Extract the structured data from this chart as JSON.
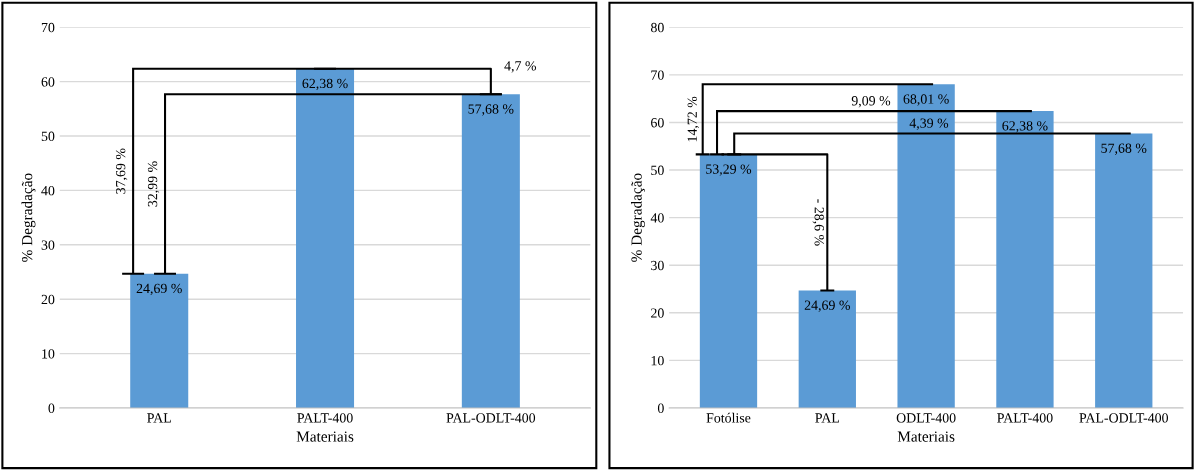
{
  "chart_data": [
    {
      "type": "bar",
      "xlabel": "Materiais",
      "ylabel": "% Degradação",
      "categories": [
        "PAL",
        "PALT-400",
        "PAL-ODLT-400"
      ],
      "values": [
        24.69,
        62.38,
        57.68
      ],
      "value_labels": [
        "24,69 %",
        "62,38 %",
        "57,68 %"
      ],
      "color": "#5b9bd5",
      "ylim": [
        0,
        70
      ],
      "yticks": [
        0,
        10,
        20,
        30,
        40,
        50,
        60,
        70
      ],
      "grid": "y",
      "annotations": [
        "37,69 %",
        "4,7 %",
        "32,99 %"
      ]
    },
    {
      "type": "bar",
      "xlabel": "Materiais",
      "ylabel": "% Degradação",
      "categories": [
        "Fotólise",
        "PAL",
        "ODLT-400",
        "PALT-400",
        "PAL-ODLT-400"
      ],
      "values": [
        53.29,
        24.69,
        68.01,
        62.38,
        57.68
      ],
      "value_labels": [
        "53,29 %",
        "24,69 %",
        "68,01 %",
        "62,38 %",
        "57,68 %"
      ],
      "color": "#5b9bd5",
      "ylim": [
        0,
        80
      ],
      "yticks": [
        0,
        10,
        20,
        30,
        40,
        50,
        60,
        70,
        80
      ],
      "grid": "y",
      "annotations": [
        "14,72 %",
        "9,09 %",
        "4,39 %",
        "- 28,6 %"
      ]
    }
  ]
}
